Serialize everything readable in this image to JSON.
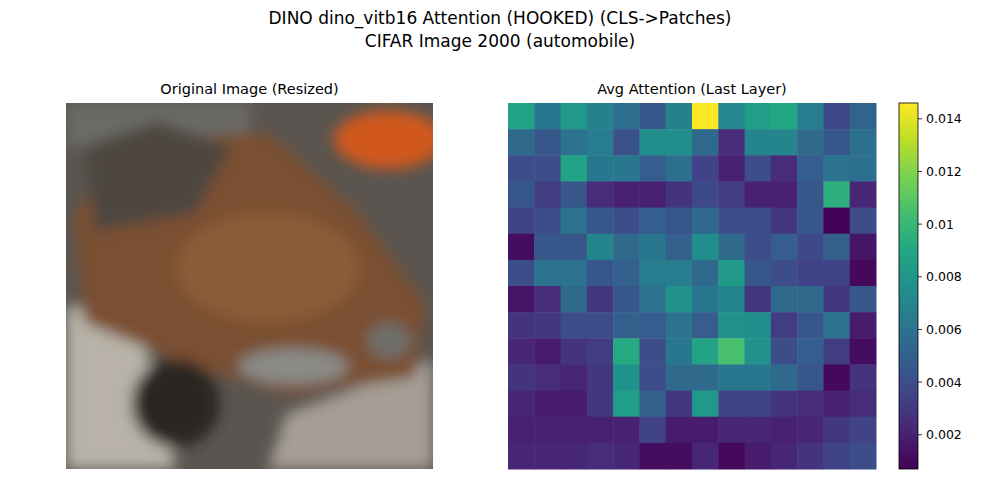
{
  "figure_title": [
    "DINO dino_vitb16 Attention (HOOKED) (CLS->Patches)",
    "CIFAR Image 2000 (automobile)"
  ],
  "chart_data": [
    {
      "type": "image",
      "title": "Original Image (Resized)",
      "tick_labels": false
    },
    {
      "type": "heatmap",
      "title": "Avg Attention (Last Layer)",
      "tick_labels": false,
      "cells": [
        [
          0.0088,
          0.0062,
          0.0082,
          0.0068,
          0.0058,
          0.0045,
          0.0068,
          0.0146,
          0.0072,
          0.0085,
          0.009,
          0.0065,
          0.0038,
          0.0052
        ],
        [
          0.0055,
          0.0045,
          0.006,
          0.0065,
          0.0042,
          0.0075,
          0.0075,
          0.0055,
          0.0025,
          0.007,
          0.007,
          0.0055,
          0.0045,
          0.0058
        ],
        [
          0.004,
          0.004,
          0.0088,
          0.0062,
          0.0062,
          0.0048,
          0.0058,
          0.0035,
          0.002,
          0.004,
          0.0025,
          0.0048,
          0.006,
          0.0058
        ],
        [
          0.0045,
          0.0032,
          0.0045,
          0.0025,
          0.002,
          0.002,
          0.0028,
          0.0038,
          0.0032,
          0.002,
          0.002,
          0.0045,
          0.0095,
          0.0022
        ],
        [
          0.0035,
          0.004,
          0.006,
          0.0045,
          0.004,
          0.0048,
          0.0045,
          0.0055,
          0.004,
          0.004,
          0.003,
          0.0045,
          0.0008,
          0.004
        ],
        [
          0.0012,
          0.0045,
          0.0045,
          0.007,
          0.0055,
          0.0062,
          0.005,
          0.0075,
          0.0055,
          0.004,
          0.0048,
          0.0038,
          0.005,
          0.0015
        ],
        [
          0.004,
          0.006,
          0.006,
          0.0045,
          0.005,
          0.0065,
          0.0065,
          0.0055,
          0.0082,
          0.0045,
          0.004,
          0.0035,
          0.0035,
          0.001
        ],
        [
          0.0015,
          0.0025,
          0.0055,
          0.003,
          0.0045,
          0.006,
          0.0078,
          0.0062,
          0.007,
          0.003,
          0.0055,
          0.0055,
          0.003,
          0.0045
        ],
        [
          0.0028,
          0.003,
          0.004,
          0.004,
          0.005,
          0.0048,
          0.006,
          0.0048,
          0.0078,
          0.0075,
          0.0032,
          0.0045,
          0.006,
          0.0018
        ],
        [
          0.0022,
          0.0018,
          0.0028,
          0.0032,
          0.0092,
          0.004,
          0.0062,
          0.0088,
          0.0105,
          0.0078,
          0.004,
          0.0048,
          0.0032,
          0.0012
        ],
        [
          0.0028,
          0.0025,
          0.0022,
          0.003,
          0.0078,
          0.004,
          0.0055,
          0.0055,
          0.0062,
          0.0062,
          0.0055,
          0.0045,
          0.001,
          0.0028
        ],
        [
          0.0022,
          0.0018,
          0.0018,
          0.003,
          0.0085,
          0.005,
          0.003,
          0.0082,
          0.0035,
          0.0035,
          0.0028,
          0.0025,
          0.002,
          0.0025
        ],
        [
          0.002,
          0.002,
          0.002,
          0.002,
          0.002,
          0.0035,
          0.0018,
          0.0018,
          0.0022,
          0.0022,
          0.002,
          0.0022,
          0.003,
          0.0035
        ],
        [
          0.0022,
          0.0022,
          0.0022,
          0.0025,
          0.0022,
          0.0012,
          0.0012,
          0.0022,
          0.001,
          0.0018,
          0.0022,
          0.0028,
          0.0035,
          0.004
        ]
      ],
      "colorbar": {
        "range": [
          0.0007,
          0.0146
        ],
        "ticks": [
          0.002,
          0.004,
          0.006,
          0.008,
          0.01,
          0.012,
          0.014
        ]
      }
    }
  ]
}
